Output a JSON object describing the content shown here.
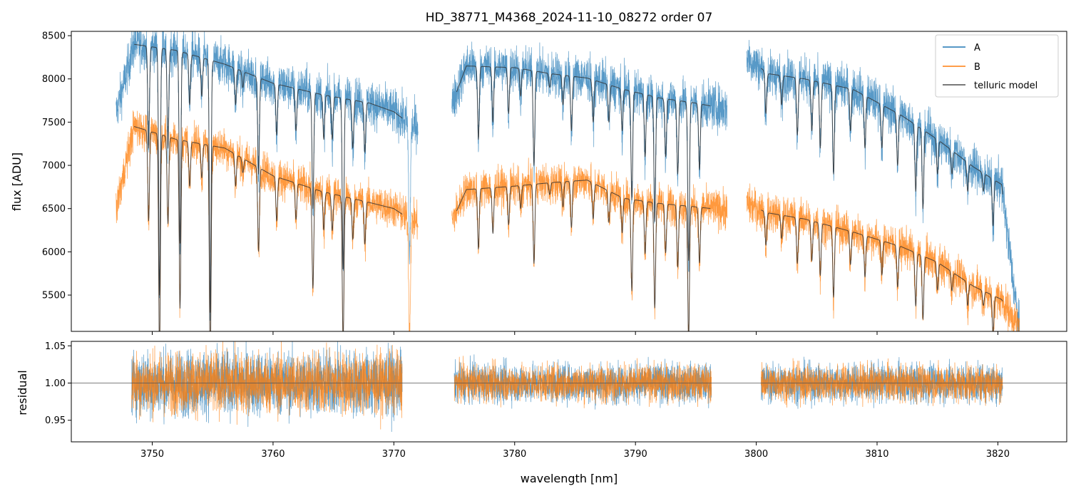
{
  "chart_data": [
    {
      "type": "line",
      "panel": "flux",
      "title": "HD_38771_M4368_2024-11-10_08272  order 07",
      "ylabel": "flux [ADU]",
      "xlim": [
        3743.3,
        3825.7
      ],
      "ylim": [
        5080,
        8550
      ],
      "yticks": [
        5500,
        6000,
        6500,
        7000,
        7500,
        8000,
        8500
      ],
      "xticks": [
        3750,
        3760,
        3770,
        3780,
        3790,
        3800,
        3810,
        3820
      ],
      "legend_position": "top-right",
      "series": [
        {
          "name": "A",
          "color": "#1f77b4",
          "segments": [
            [
              3747.0,
              3772.0
            ],
            [
              3774.8,
              3797.6
            ],
            [
              3799.2,
              3821.8
            ]
          ],
          "continuum": [
            [
              3747.0,
              7600
            ],
            [
              3748.5,
              8400
            ],
            [
              3752,
              8330
            ],
            [
              3756,
              8170
            ],
            [
              3760,
              7950
            ],
            [
              3764,
              7820
            ],
            [
              3768,
              7720
            ],
            [
              3770,
              7620
            ],
            [
              3771.6,
              7450
            ],
            [
              3774.8,
              7700
            ],
            [
              3776,
              8150
            ],
            [
              3780,
              8130
            ],
            [
              3783,
              8060
            ],
            [
              3786,
              8010
            ],
            [
              3789,
              7880
            ],
            [
              3792,
              7780
            ],
            [
              3795,
              7720
            ],
            [
              3797.6,
              7650
            ],
            [
              3799.2,
              8250
            ],
            [
              3801,
              8060
            ],
            [
              3804,
              8000
            ],
            [
              3808,
              7880
            ],
            [
              3812,
              7580
            ],
            [
              3815,
              7300
            ],
            [
              3818,
              6980
            ],
            [
              3820.3,
              6780
            ],
            [
              3821.8,
              5050
            ]
          ],
          "lines": [
            [
              3749.7,
              7200
            ],
            [
              3750.6,
              5500
            ],
            [
              3751.3,
              7200
            ],
            [
              3752.3,
              6100
            ],
            [
              3753.1,
              7700
            ],
            [
              3754.1,
              7800
            ],
            [
              3754.8,
              5300
            ],
            [
              3756.9,
              7700
            ],
            [
              3757.5,
              7900
            ],
            [
              3758.8,
              6900
            ],
            [
              3760.3,
              7350
            ],
            [
              3761.9,
              7400
            ],
            [
              3763.3,
              6500
            ],
            [
              3764.2,
              7300
            ],
            [
              3764.9,
              7300
            ],
            [
              3765.8,
              5800
            ],
            [
              3766.6,
              7200
            ],
            [
              3767.6,
              7150
            ],
            [
              3771.3,
              5950
            ],
            [
              3777.0,
              7300
            ],
            [
              3778.2,
              7500
            ],
            [
              3779.5,
              7600
            ],
            [
              3780.5,
              7800
            ],
            [
              3781.6,
              7000
            ],
            [
              3782.9,
              7900
            ],
            [
              3784.0,
              7700
            ],
            [
              3784.7,
              7400
            ],
            [
              3786.5,
              7500
            ],
            [
              3787.8,
              7500
            ],
            [
              3788.9,
              7400
            ],
            [
              3789.7,
              6600
            ],
            [
              3790.8,
              7100
            ],
            [
              3791.6,
              6350
            ],
            [
              3792.5,
              7100
            ],
            [
              3793.5,
              6900
            ],
            [
              3794.4,
              5900
            ],
            [
              3795.3,
              6950
            ],
            [
              3800.8,
              7600
            ],
            [
              3802.1,
              7700
            ],
            [
              3803.4,
              7350
            ],
            [
              3804.6,
              7400
            ],
            [
              3805.3,
              7200
            ],
            [
              3806.4,
              6900
            ],
            [
              3807.8,
              7400
            ],
            [
              3809.0,
              7200
            ],
            [
              3810.4,
              7200
            ],
            [
              3811.7,
              7000
            ],
            [
              3813.2,
              6700
            ],
            [
              3813.8,
              6500
            ],
            [
              3815.0,
              6900
            ],
            [
              3816.2,
              6900
            ],
            [
              3817.5,
              6700
            ],
            [
              3818.8,
              6700
            ],
            [
              3819.6,
              6300
            ]
          ]
        },
        {
          "name": "B",
          "color": "#ff7f0e",
          "segments": [
            [
              3747.0,
              3772.0
            ],
            [
              3774.8,
              3797.6
            ],
            [
              3799.2,
              3821.8
            ]
          ],
          "continuum": [
            [
              3747.0,
              6500
            ],
            [
              3748.5,
              7450
            ],
            [
              3752,
              7300
            ],
            [
              3756,
              7200
            ],
            [
              3760,
              6880
            ],
            [
              3764,
              6700
            ],
            [
              3768,
              6570
            ],
            [
              3770,
              6500
            ],
            [
              3771.6,
              6350
            ],
            [
              3774.8,
              6350
            ],
            [
              3776,
              6720
            ],
            [
              3780,
              6760
            ],
            [
              3783,
              6800
            ],
            [
              3786,
              6830
            ],
            [
              3789,
              6620
            ],
            [
              3792,
              6560
            ],
            [
              3795,
              6520
            ],
            [
              3797.6,
              6480
            ],
            [
              3799.2,
              6550
            ],
            [
              3801,
              6450
            ],
            [
              3804,
              6380
            ],
            [
              3808,
              6230
            ],
            [
              3812,
              6060
            ],
            [
              3815,
              5880
            ],
            [
              3818,
              5600
            ],
            [
              3820.3,
              5450
            ],
            [
              3821.8,
              5120
            ]
          ],
          "lines": []
        },
        {
          "name": "telluric model",
          "color": "#4d4d4d",
          "segments": [
            [
              3748.5,
              3770.7
            ],
            [
              3775.2,
              3796.2
            ],
            [
              3800.4,
              3820.4
            ]
          ]
        }
      ]
    },
    {
      "type": "line",
      "panel": "residual",
      "xlabel": "wavelength [nm]",
      "ylabel": "residual",
      "xlim": [
        3743.3,
        3825.7
      ],
      "ylim": [
        0.921,
        1.056
      ],
      "yticks": [
        0.95,
        1.0,
        1.05
      ],
      "xticks": [
        3750,
        3760,
        3770,
        3780,
        3790,
        3800,
        3810,
        3820
      ],
      "reference_line": 1.0,
      "series": [
        {
          "name": "A",
          "color": "#1f77b4",
          "segments": [
            [
              3748.3,
              3770.7
            ],
            [
              3775.0,
              3796.3
            ],
            [
              3800.4,
              3820.4
            ]
          ]
        },
        {
          "name": "B",
          "color": "#ff7f0e",
          "segments": [
            [
              3748.3,
              3770.7
            ],
            [
              3775.0,
              3796.3
            ],
            [
              3800.4,
              3820.4
            ]
          ]
        }
      ]
    }
  ]
}
